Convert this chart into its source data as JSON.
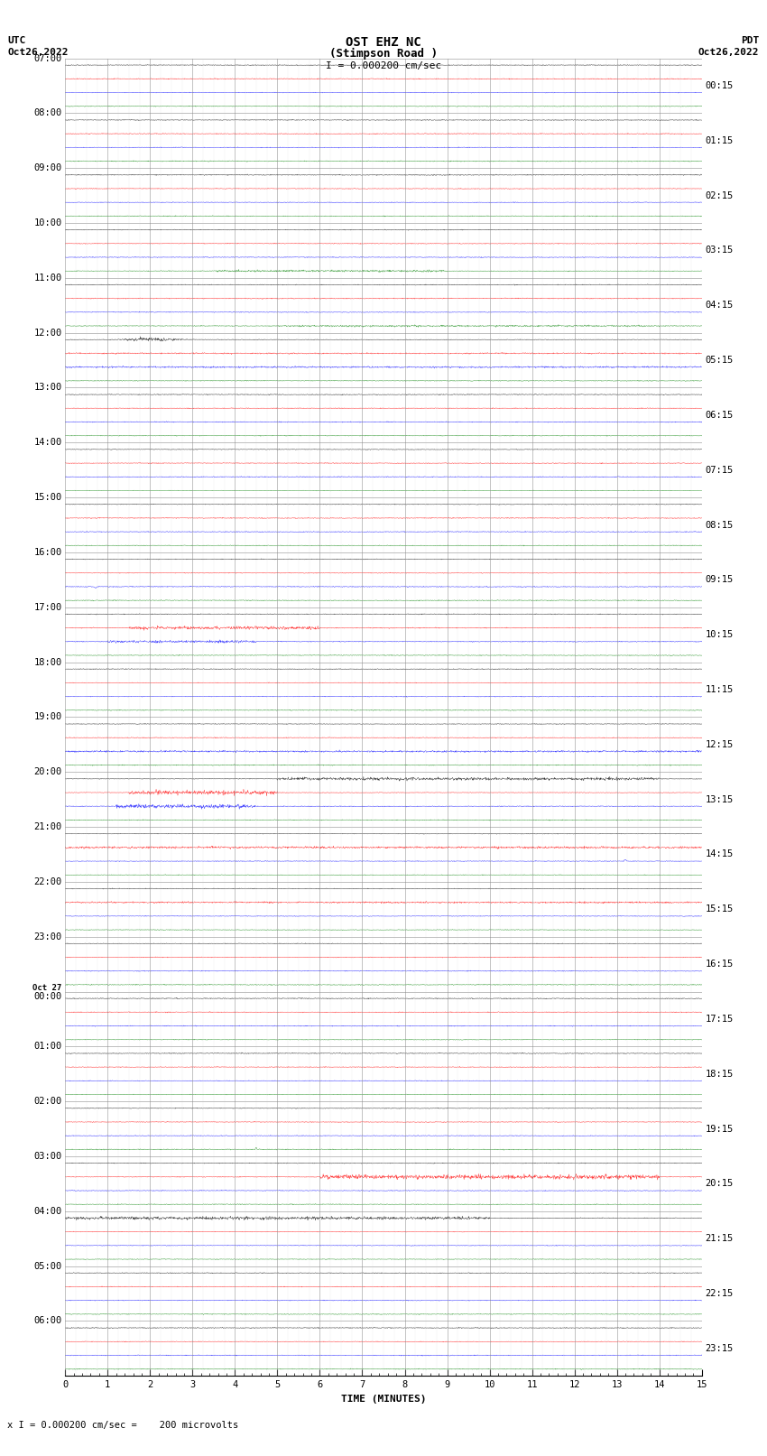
{
  "title_line1": "OST EHZ NC",
  "title_line2": "(Stimpson Road )",
  "scale_label": "I = 0.000200 cm/sec",
  "bottom_label": "x I = 0.000200 cm/sec =    200 microvolts",
  "xlabel": "TIME (MINUTES)",
  "left_header": "UTC\nOct26,2022",
  "right_header": "PDT\nOct26,2022",
  "left_times_utc": [
    "07:00",
    "08:00",
    "09:00",
    "10:00",
    "11:00",
    "12:00",
    "13:00",
    "14:00",
    "15:00",
    "16:00",
    "17:00",
    "18:00",
    "19:00",
    "20:00",
    "21:00",
    "22:00",
    "23:00",
    "Oct 27\n00:00",
    "01:00",
    "02:00",
    "03:00",
    "04:00",
    "05:00",
    "06:00"
  ],
  "right_times_pdt": [
    "00:15",
    "01:15",
    "02:15",
    "03:15",
    "04:15",
    "05:15",
    "06:15",
    "07:15",
    "08:15",
    "09:15",
    "10:15",
    "11:15",
    "12:15",
    "13:15",
    "14:15",
    "15:15",
    "16:15",
    "17:15",
    "18:15",
    "19:15",
    "20:15",
    "21:15",
    "22:15",
    "23:15"
  ],
  "n_traces": 24,
  "n_rows_per_trace": 4,
  "trace_colors": [
    "black",
    "red",
    "blue",
    "green"
  ],
  "xmin": 0,
  "xmax": 15,
  "bg_color": "#ffffff",
  "grid_color": "#888888",
  "title_fontsize": 10,
  "tick_fontsize": 7.5,
  "label_fontsize": 8,
  "header_fontsize": 8
}
